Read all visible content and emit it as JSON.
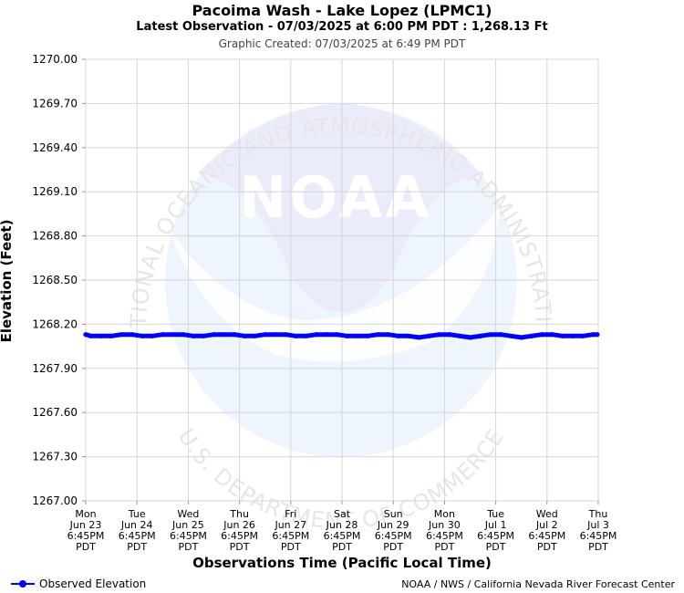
{
  "header": {
    "title": "Pacoima Wash - Lake Lopez (LPMC1)",
    "subtitle": "Latest Observation - 07/03/2025 at 6:00 PM PDT : 1,268.13 Ft",
    "created": "Graphic Created: 07/03/2025 at 6:49 PM PDT"
  },
  "watermark": {
    "logo_text": "NOAA",
    "ring_top": "NATIONAL OCEANIC AND ATMOSPHERIC ADMINISTRATION",
    "ring_bottom": "U.S. DEPARTMENT OF COMMERCE"
  },
  "chart_data": {
    "type": "line",
    "ylabel": "Elevation (Feet)",
    "xlabel": "Observations Time (Pacific Local Time)",
    "ylim": [
      1267.0,
      1270.0
    ],
    "yticks": [
      "1270.00",
      "1269.70",
      "1269.40",
      "1269.10",
      "1268.80",
      "1268.50",
      "1268.20",
      "1267.90",
      "1267.60",
      "1267.30",
      "1267.00"
    ],
    "xlim": [
      0,
      10
    ],
    "xticks": [
      [
        "Mon",
        "Jun 23",
        "6:45PM",
        "PDT"
      ],
      [
        "Tue",
        "Jun 24",
        "6:45PM",
        "PDT"
      ],
      [
        "Wed",
        "Jun 25",
        "6:45PM",
        "PDT"
      ],
      [
        "Thu",
        "Jun 26",
        "6:45PM",
        "PDT"
      ],
      [
        "Fri",
        "Jun 27",
        "6:45PM",
        "PDT"
      ],
      [
        "Sat",
        "Jun 28",
        "6:45PM",
        "PDT"
      ],
      [
        "Sun",
        "Jun 29",
        "6:45PM",
        "PDT"
      ],
      [
        "Mon",
        "Jun 30",
        "6:45PM",
        "PDT"
      ],
      [
        "Tue",
        "Jul 1",
        "6:45PM",
        "PDT"
      ],
      [
        "Wed",
        "Jul 2",
        "6:45PM",
        "PDT"
      ],
      [
        "Thu",
        "Jul 3",
        "6:45PM",
        "PDT"
      ]
    ],
    "grid": true,
    "legend_position": "bottom-left",
    "series": [
      {
        "name": "Observed Elevation",
        "color": "#0000ff",
        "x": [
          0,
          0.1,
          0.3,
          0.5,
          0.7,
          0.9,
          1.1,
          1.3,
          1.5,
          1.7,
          1.9,
          2.1,
          2.3,
          2.5,
          2.7,
          2.9,
          3.1,
          3.3,
          3.5,
          3.7,
          3.9,
          4.1,
          4.3,
          4.5,
          4.7,
          4.9,
          5.1,
          5.3,
          5.5,
          5.7,
          5.9,
          6.1,
          6.3,
          6.5,
          6.7,
          6.9,
          7.1,
          7.3,
          7.5,
          7.7,
          7.9,
          8.1,
          8.3,
          8.5,
          8.7,
          8.9,
          9.1,
          9.3,
          9.5,
          9.7,
          9.9,
          9.98
        ],
        "y": [
          1268.13,
          1268.12,
          1268.12,
          1268.12,
          1268.13,
          1268.13,
          1268.12,
          1268.12,
          1268.13,
          1268.13,
          1268.13,
          1268.12,
          1268.12,
          1268.13,
          1268.13,
          1268.13,
          1268.12,
          1268.12,
          1268.13,
          1268.13,
          1268.13,
          1268.12,
          1268.12,
          1268.13,
          1268.13,
          1268.13,
          1268.12,
          1268.12,
          1268.12,
          1268.13,
          1268.13,
          1268.12,
          1268.12,
          1268.11,
          1268.12,
          1268.13,
          1268.13,
          1268.12,
          1268.11,
          1268.12,
          1268.13,
          1268.13,
          1268.12,
          1268.11,
          1268.12,
          1268.13,
          1268.13,
          1268.12,
          1268.12,
          1268.12,
          1268.13,
          1268.13
        ]
      }
    ]
  },
  "legend": {
    "label": "Observed Elevation"
  },
  "footer": {
    "credit": "NOAA / NWS / California Nevada River Forecast Center"
  },
  "colors": {
    "series": "#0000ff",
    "grid": "#d6d6d6",
    "watermark_fill": "#ebecfa",
    "watermark_light": "#eef5fd"
  }
}
